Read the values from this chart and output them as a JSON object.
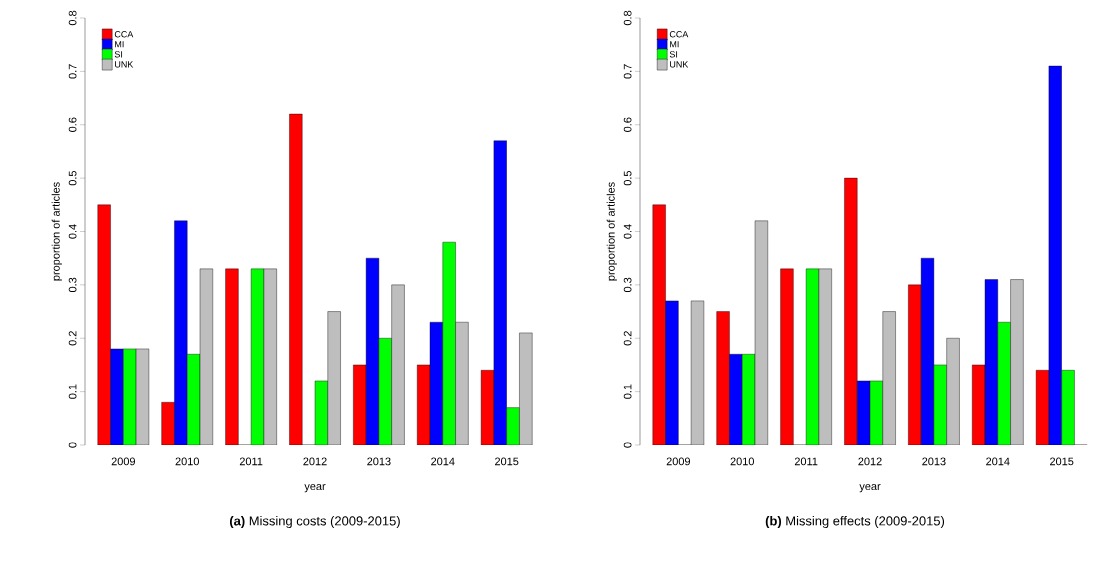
{
  "chart_data": [
    {
      "type": "bar",
      "title": "**(a)** Missing costs (2009-2015)",
      "xlabel": "year",
      "ylabel": "proportion of articles",
      "categories": [
        "2009",
        "2010",
        "2011",
        "2012",
        "2013",
        "2014",
        "2015"
      ],
      "series": [
        {
          "name": "CCA",
          "color": "#ff0000",
          "values": [
            0.45,
            0.08,
            0.33,
            0.62,
            0.15,
            0.15,
            0.14
          ]
        },
        {
          "name": "MI",
          "color": "#0000ff",
          "values": [
            0.18,
            0.42,
            0,
            0,
            0.35,
            0.23,
            0.57
          ]
        },
        {
          "name": "SI",
          "color": "#00ff00",
          "values": [
            0.18,
            0.17,
            0.33,
            0.12,
            0.2,
            0.38,
            0.07
          ]
        },
        {
          "name": "UNK",
          "color": "#bebebe",
          "values": [
            0.18,
            0.33,
            0.33,
            0.25,
            0.3,
            0.23,
            0.21
          ]
        }
      ],
      "ylim": [
        0,
        0.8
      ],
      "yticks": [
        0,
        0.1,
        0.2,
        0.3,
        0.4,
        0.5,
        0.6,
        0.7,
        0.8
      ],
      "legend": "top left",
      "grid": false
    },
    {
      "type": "bar",
      "title": "**(b)** Missing effects (2009-2015)",
      "xlabel": "year",
      "ylabel": "proportion of articles",
      "categories": [
        "2009",
        "2010",
        "2011",
        "2012",
        "2013",
        "2014",
        "2015"
      ],
      "series": [
        {
          "name": "CCA",
          "color": "#ff0000",
          "values": [
            0.45,
            0.25,
            0.33,
            0.5,
            0.3,
            0.15,
            0.14
          ]
        },
        {
          "name": "MI",
          "color": "#0000ff",
          "values": [
            0.27,
            0.17,
            0,
            0.12,
            0.35,
            0.31,
            0.71
          ]
        },
        {
          "name": "SI",
          "color": "#00ff00",
          "values": [
            0,
            0.17,
            0.33,
            0.12,
            0.15,
            0.23,
            0.14
          ]
        },
        {
          "name": "UNK",
          "color": "#bebebe",
          "values": [
            0.27,
            0.42,
            0.33,
            0.25,
            0.2,
            0.31,
            0
          ]
        }
      ],
      "ylim": [
        0,
        0.8
      ],
      "yticks": [
        0,
        0.1,
        0.2,
        0.3,
        0.4,
        0.5,
        0.6,
        0.7,
        0.8
      ],
      "legend": "top left",
      "grid": false
    }
  ]
}
